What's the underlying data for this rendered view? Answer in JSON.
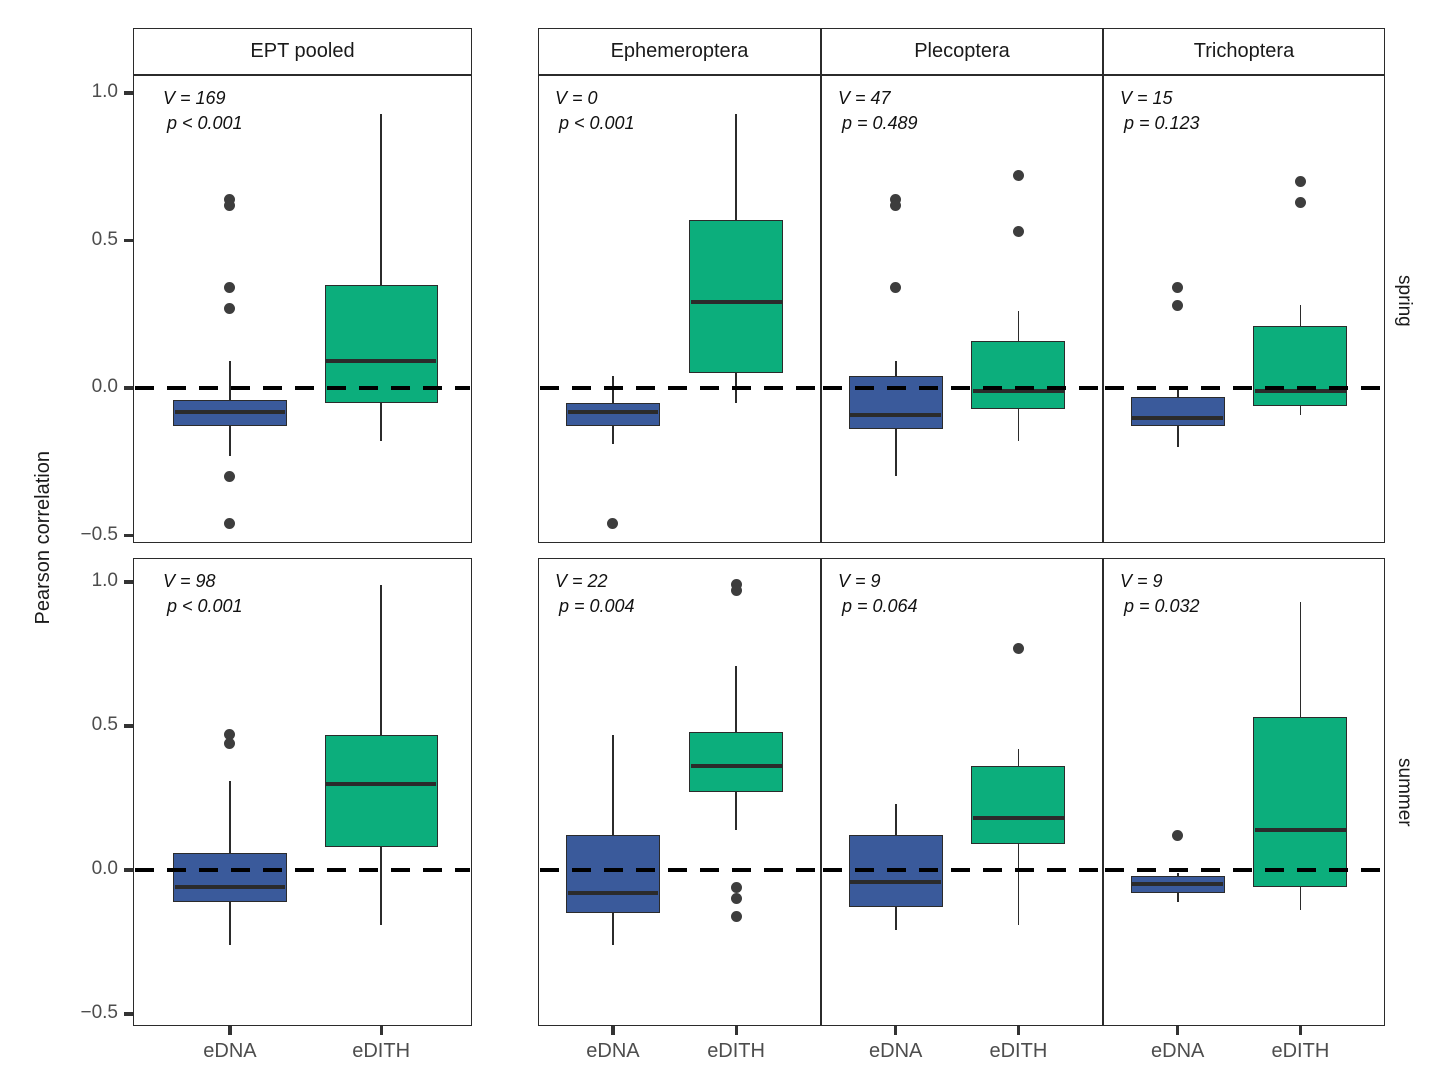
{
  "figure": {
    "ylabel": "Pearson correlation",
    "x_categories": [
      "eDNA",
      "eDITH"
    ],
    "row_facets": [
      "spring",
      "summer"
    ],
    "col_facets": [
      "EPT pooled",
      "Ephemeroptera",
      "Plecoptera",
      "Trichoptera"
    ],
    "colors": {
      "eDNA": "#3A5A9B",
      "eDITH": "#0CAE7C",
      "box_line": "#2b2b2b",
      "outlier": "#3d3d3d",
      "tick_text": "#4d4d4d"
    }
  },
  "chart_data": {
    "type": "boxplot",
    "facet_rows": [
      "spring",
      "summer"
    ],
    "facet_cols": [
      "EPT pooled",
      "Ephemeroptera",
      "Plecoptera",
      "Trichoptera"
    ],
    "y_axis": {
      "label": "Pearson correlation",
      "ticks": [
        1.0,
        0.5,
        0.0,
        -0.5
      ],
      "tick_labels": [
        "1.0",
        "0.5",
        "0.0",
        "−0.5"
      ],
      "ylim": [
        -0.55,
        1.07
      ]
    },
    "zero_reference_line": 0,
    "legend": "none",
    "panels": [
      {
        "season": "spring",
        "taxon": "EPT pooled",
        "v_text": "V = 169",
        "p_text": "p < 0.001",
        "boxes": [
          {
            "group": "eDNA",
            "whisker_low": -0.23,
            "q1": -0.13,
            "median": -0.08,
            "q3": -0.04,
            "whisker_high": 0.09,
            "outliers": [
              0.64,
              0.62,
              0.34,
              0.27,
              -0.3,
              -0.46
            ]
          },
          {
            "group": "eDITH",
            "whisker_low": -0.18,
            "q1": -0.05,
            "median": 0.09,
            "q3": 0.35,
            "whisker_high": 0.93,
            "outliers": []
          }
        ]
      },
      {
        "season": "spring",
        "taxon": "Ephemeroptera",
        "v_text": "V = 0",
        "p_text": "p < 0.001",
        "boxes": [
          {
            "group": "eDNA",
            "whisker_low": -0.19,
            "q1": -0.13,
            "median": -0.08,
            "q3": -0.05,
            "whisker_high": 0.04,
            "outliers": [
              -0.46
            ]
          },
          {
            "group": "eDITH",
            "whisker_low": -0.05,
            "q1": 0.05,
            "median": 0.29,
            "q3": 0.57,
            "whisker_high": 0.93,
            "outliers": []
          }
        ]
      },
      {
        "season": "spring",
        "taxon": "Plecoptera",
        "v_text": "V = 47",
        "p_text": "p = 0.489",
        "boxes": [
          {
            "group": "eDNA",
            "whisker_low": -0.3,
            "q1": -0.14,
            "median": -0.09,
            "q3": 0.04,
            "whisker_high": 0.09,
            "outliers": [
              0.64,
              0.62,
              0.34
            ]
          },
          {
            "group": "eDITH",
            "whisker_low": -0.18,
            "q1": -0.07,
            "median": -0.01,
            "q3": 0.16,
            "whisker_high": 0.26,
            "outliers": [
              0.72,
              0.53
            ]
          }
        ]
      },
      {
        "season": "spring",
        "taxon": "Trichoptera",
        "v_text": "V = 15",
        "p_text": "p = 0.123",
        "boxes": [
          {
            "group": "eDNA",
            "whisker_low": -0.2,
            "q1": -0.13,
            "median": -0.1,
            "q3": -0.03,
            "whisker_high": 0.0,
            "outliers": [
              0.34,
              0.28
            ]
          },
          {
            "group": "eDITH",
            "whisker_low": -0.09,
            "q1": -0.06,
            "median": -0.01,
            "q3": 0.21,
            "whisker_high": 0.28,
            "outliers": [
              0.7,
              0.63
            ]
          }
        ]
      },
      {
        "season": "summer",
        "taxon": "EPT pooled",
        "v_text": "V = 98",
        "p_text": "p < 0.001",
        "boxes": [
          {
            "group": "eDNA",
            "whisker_low": -0.26,
            "q1": -0.11,
            "median": -0.06,
            "q3": 0.06,
            "whisker_high": 0.31,
            "outliers": [
              0.47,
              0.44
            ]
          },
          {
            "group": "eDITH",
            "whisker_low": -0.19,
            "q1": 0.08,
            "median": 0.3,
            "q3": 0.47,
            "whisker_high": 0.99,
            "outliers": []
          }
        ]
      },
      {
        "season": "summer",
        "taxon": "Ephemeroptera",
        "v_text": "V = 22",
        "p_text": "p = 0.004",
        "boxes": [
          {
            "group": "eDNA",
            "whisker_low": -0.26,
            "q1": -0.15,
            "median": -0.08,
            "q3": 0.12,
            "whisker_high": 0.47,
            "outliers": []
          },
          {
            "group": "eDITH",
            "whisker_low": 0.14,
            "q1": 0.27,
            "median": 0.36,
            "q3": 0.48,
            "whisker_high": 0.71,
            "outliers": [
              0.99,
              0.97,
              -0.06,
              -0.1,
              -0.16
            ]
          }
        ]
      },
      {
        "season": "summer",
        "taxon": "Plecoptera",
        "v_text": "V = 9",
        "p_text": "p = 0.064",
        "boxes": [
          {
            "group": "eDNA",
            "whisker_low": -0.21,
            "q1": -0.13,
            "median": -0.04,
            "q3": 0.12,
            "whisker_high": 0.23,
            "outliers": []
          },
          {
            "group": "eDITH",
            "whisker_low": -0.19,
            "q1": 0.09,
            "median": 0.18,
            "q3": 0.36,
            "whisker_high": 0.42,
            "outliers": [
              0.77
            ]
          }
        ]
      },
      {
        "season": "summer",
        "taxon": "Trichoptera",
        "v_text": "V = 9",
        "p_text": "p = 0.032",
        "boxes": [
          {
            "group": "eDNA",
            "whisker_low": -0.11,
            "q1": -0.08,
            "median": -0.05,
            "q3": -0.02,
            "whisker_high": -0.01,
            "outliers": [
              0.12
            ]
          },
          {
            "group": "eDITH",
            "whisker_low": -0.14,
            "q1": -0.06,
            "median": 0.14,
            "q3": 0.53,
            "whisker_high": 0.93,
            "outliers": []
          }
        ]
      }
    ]
  }
}
